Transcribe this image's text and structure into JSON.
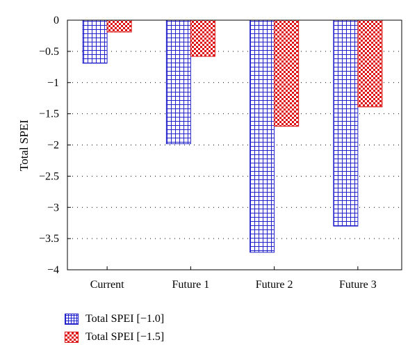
{
  "chart_data": {
    "type": "bar",
    "ylabel": "Total SPEI",
    "xlabel": "",
    "categories": [
      "Current",
      "Future 1",
      "Future 2",
      "Future 3"
    ],
    "series": [
      {
        "name": "Total SPEI [−1.0]",
        "values": [
          -0.69,
          -1.98,
          -3.72,
          -3.3
        ],
        "color": "#2222cc",
        "pattern": "grid"
      },
      {
        "name": "Total SPEI [−1.5]",
        "values": [
          -0.19,
          -0.58,
          -1.7,
          -1.39
        ],
        "color": "#dd1111",
        "pattern": "checker"
      }
    ],
    "ylim": [
      -4,
      0
    ],
    "yticks": [
      0,
      -0.5,
      -1,
      -1.5,
      -2,
      -2.5,
      -3,
      -3.5,
      -4
    ],
    "ytick_labels": [
      "0",
      "−0.5",
      "−1",
      "−1.5",
      "−2",
      "−2.5",
      "−3",
      "−3.5",
      "−4"
    ],
    "grid": "horizontal-dotted",
    "legend_position": "bottom-left"
  }
}
